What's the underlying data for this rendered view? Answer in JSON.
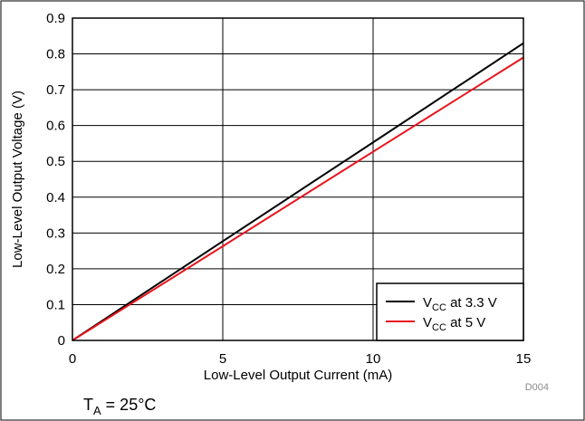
{
  "chart_data": {
    "type": "line",
    "xlabel": "Low-Level Output Current (mA)",
    "ylabel": "Low-Level Output Voltage (V)",
    "xlim": [
      0,
      15
    ],
    "ylim": [
      0,
      0.9
    ],
    "x_ticks": [
      "0",
      "5",
      "10",
      "15"
    ],
    "y_ticks": [
      "0",
      "0.1",
      "0.2",
      "0.3",
      "0.4",
      "0.5",
      "0.6",
      "0.7",
      "0.8",
      "0.9"
    ],
    "x_tick_values": [
      0,
      5,
      10,
      15
    ],
    "y_tick_values": [
      0,
      0.1,
      0.2,
      0.3,
      0.4,
      0.5,
      0.6,
      0.7,
      0.8,
      0.9
    ],
    "grid": true,
    "legend_position": "bottom-right",
    "series": [
      {
        "name_main": "V",
        "name_sub": "CC",
        "name_rest": " at 3.3 V",
        "color": "#000000",
        "x": [
          0,
          5,
          10,
          15
        ],
        "y": [
          0,
          0.277,
          0.553,
          0.83
        ]
      },
      {
        "name_main": "V",
        "name_sub": "CC",
        "name_rest": " at 5 V",
        "color": "#e8141c",
        "x": [
          0,
          5,
          10,
          15
        ],
        "y": [
          0,
          0.263,
          0.527,
          0.79
        ]
      }
    ],
    "annotation_code": "D004",
    "condition": {
      "main": "T",
      "sub": "A",
      "rest": " = 25°C"
    }
  }
}
